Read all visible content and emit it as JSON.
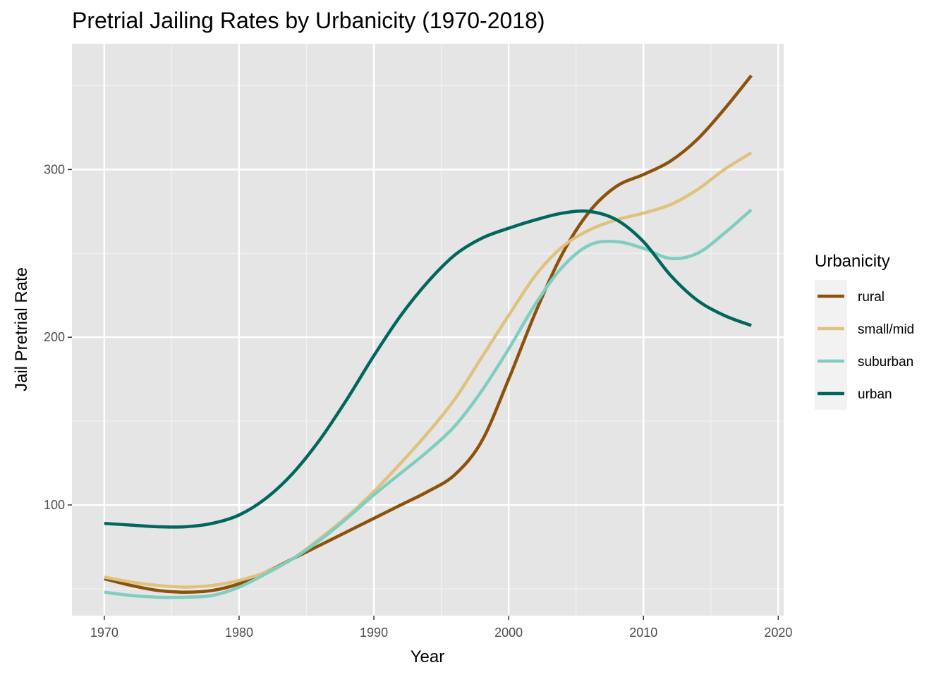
{
  "chart_data": {
    "type": "line",
    "title": "Pretrial Jailing Rates by Urbanicity (1970-2018)",
    "xlabel": "Year",
    "ylabel": "Jail Pretrial Rate",
    "xlim": [
      1967.6,
      2020.4
    ],
    "ylim": [
      34,
      375
    ],
    "x_ticks": [
      1970,
      1980,
      1990,
      2000,
      2010,
      2020
    ],
    "y_ticks": [
      100,
      200,
      300
    ],
    "grid": true,
    "legend": {
      "title": "Urbanicity",
      "placement": "right"
    },
    "x": [
      1970,
      1972,
      1974,
      1976,
      1978,
      1980,
      1982,
      1984,
      1986,
      1988,
      1990,
      1992,
      1994,
      1996,
      1998,
      2000,
      2002,
      2004,
      2006,
      2008,
      2010,
      2012,
      2014,
      2016,
      2018
    ],
    "series": [
      {
        "name": "rural",
        "color": "#8c510a",
        "values": [
          56,
          52,
          49,
          48,
          49,
          53,
          60,
          68,
          76,
          84,
          92,
          100,
          108,
          118,
          138,
          175,
          215,
          250,
          275,
          290,
          297,
          305,
          318,
          336,
          356
        ]
      },
      {
        "name": "small/mid",
        "color": "#dfc27d",
        "values": [
          57,
          54,
          52,
          51,
          52,
          55,
          60,
          68,
          80,
          93,
          108,
          125,
          143,
          163,
          188,
          213,
          237,
          254,
          264,
          270,
          274,
          279,
          288,
          300,
          310
        ]
      },
      {
        "name": "suburban",
        "color": "#80cdc1",
        "values": [
          48,
          46,
          45,
          45,
          46,
          51,
          59,
          68,
          79,
          92,
          106,
          119,
          132,
          147,
          168,
          193,
          220,
          242,
          255,
          257,
          253,
          247,
          250,
          262,
          276
        ]
      },
      {
        "name": "urban",
        "color": "#01665e",
        "values": [
          89,
          88,
          87,
          87,
          89,
          94,
          104,
          119,
          139,
          163,
          189,
          213,
          233,
          249,
          259,
          265,
          270,
          274,
          275,
          270,
          257,
          237,
          222,
          213,
          207
        ]
      }
    ]
  }
}
